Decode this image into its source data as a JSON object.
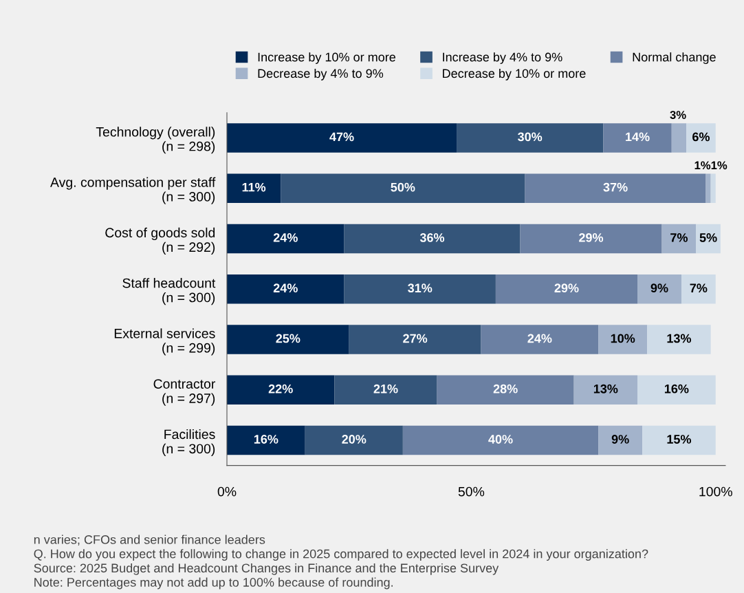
{
  "chart_data": {
    "type": "bar",
    "orientation": "horizontal",
    "stacked": true,
    "legend": "top",
    "grid": false,
    "categories": [
      "Technology (overall)\n(n = 298)",
      "Avg. compensation per staff\n(n = 300)",
      "Cost of goods sold\n(n = 292)",
      "Staff headcount\n(n = 300)",
      "External services\n(n = 299)",
      "Contractor\n(n = 297)",
      "Facilities\n(n = 300)"
    ],
    "series": [
      {
        "name": "Increase by 10% or more",
        "color": "#002856",
        "values": [
          47,
          11,
          24,
          24,
          25,
          22,
          16
        ],
        "value_labels": [
          "47%",
          "11%",
          "24%",
          "24%",
          "25%",
          "22%",
          "16%"
        ]
      },
      {
        "name": "Increase by 4% to 9%",
        "color": "#34557a",
        "values": [
          30,
          50,
          36,
          31,
          27,
          21,
          20
        ],
        "value_labels": [
          "30%",
          "50%",
          "36%",
          "31%",
          "27%",
          "21%",
          "20%"
        ]
      },
      {
        "name": "Normal change",
        "color": "#6b80a3",
        "values": [
          14,
          37,
          29,
          29,
          24,
          28,
          40
        ],
        "value_labels": [
          "14%",
          "37%",
          "29%",
          "29%",
          "24%",
          "28%",
          "40%"
        ]
      },
      {
        "name": "Decrease by 4% to 9%",
        "color": "#a3b3cb",
        "values": [
          3,
          1,
          7,
          9,
          10,
          13,
          9
        ],
        "value_labels": [
          "3%",
          "1%",
          "7%",
          "9%",
          "10%",
          "13%",
          "9%"
        ]
      },
      {
        "name": "Decrease by 10% or more",
        "color": "#cfdce8",
        "values": [
          6,
          1,
          5,
          7,
          13,
          16,
          15
        ],
        "value_labels": [
          "6%",
          "1%",
          "5%",
          "7%",
          "13%",
          "16%",
          "15%"
        ]
      }
    ],
    "xlim": [
      0,
      102
    ],
    "xticks": [
      {
        "value": 0,
        "label": "0%"
      },
      {
        "value": 50,
        "label": "50%"
      },
      {
        "value": 100,
        "label": "100%"
      }
    ],
    "annotations": [
      "n varies; CFOs and senior finance leaders",
      "Q. How do you expect the following to change in 2025 compared to expected level in 2024 in your organization?",
      "Source: 2025 Budget and Headcount Changes in Finance and the Enterprise Survey",
      "Note: Percentages may not add up to 100% because of rounding."
    ]
  }
}
